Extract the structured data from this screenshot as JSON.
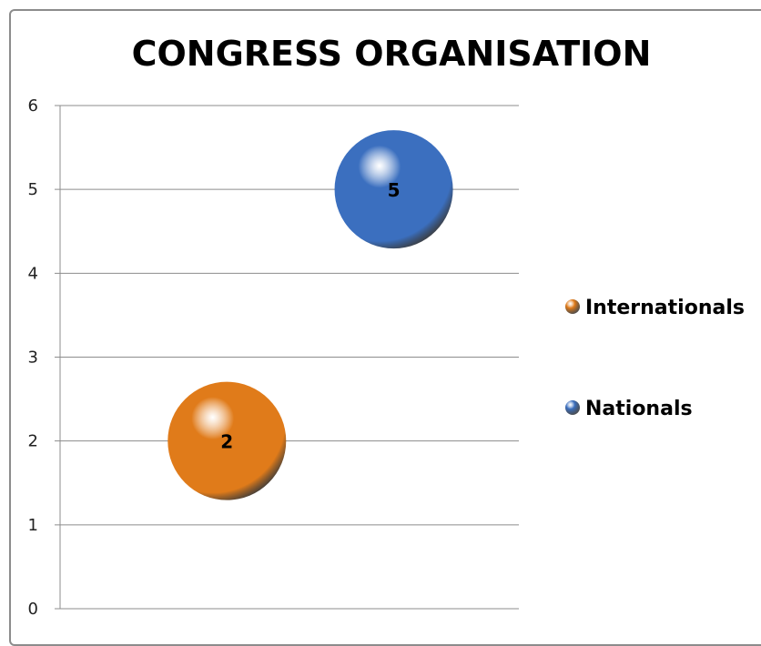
{
  "chart_data": {
    "type": "bubble",
    "title": "CONGRESS ORGANISATION",
    "xlabel": "",
    "ylabel": "",
    "ylim": [
      0,
      6
    ],
    "yticks": [
      0,
      1,
      2,
      3,
      4,
      5,
      6
    ],
    "grid": true,
    "legend_position": "right",
    "series": [
      {
        "name": "Internationals",
        "x": 1,
        "y": 2,
        "label": "2",
        "color": "#e07b1a"
      },
      {
        "name": "Nationals",
        "x": 2,
        "y": 5,
        "label": "5",
        "color": "#3b6fbf"
      }
    ],
    "xlim": [
      0,
      2.75
    ]
  }
}
